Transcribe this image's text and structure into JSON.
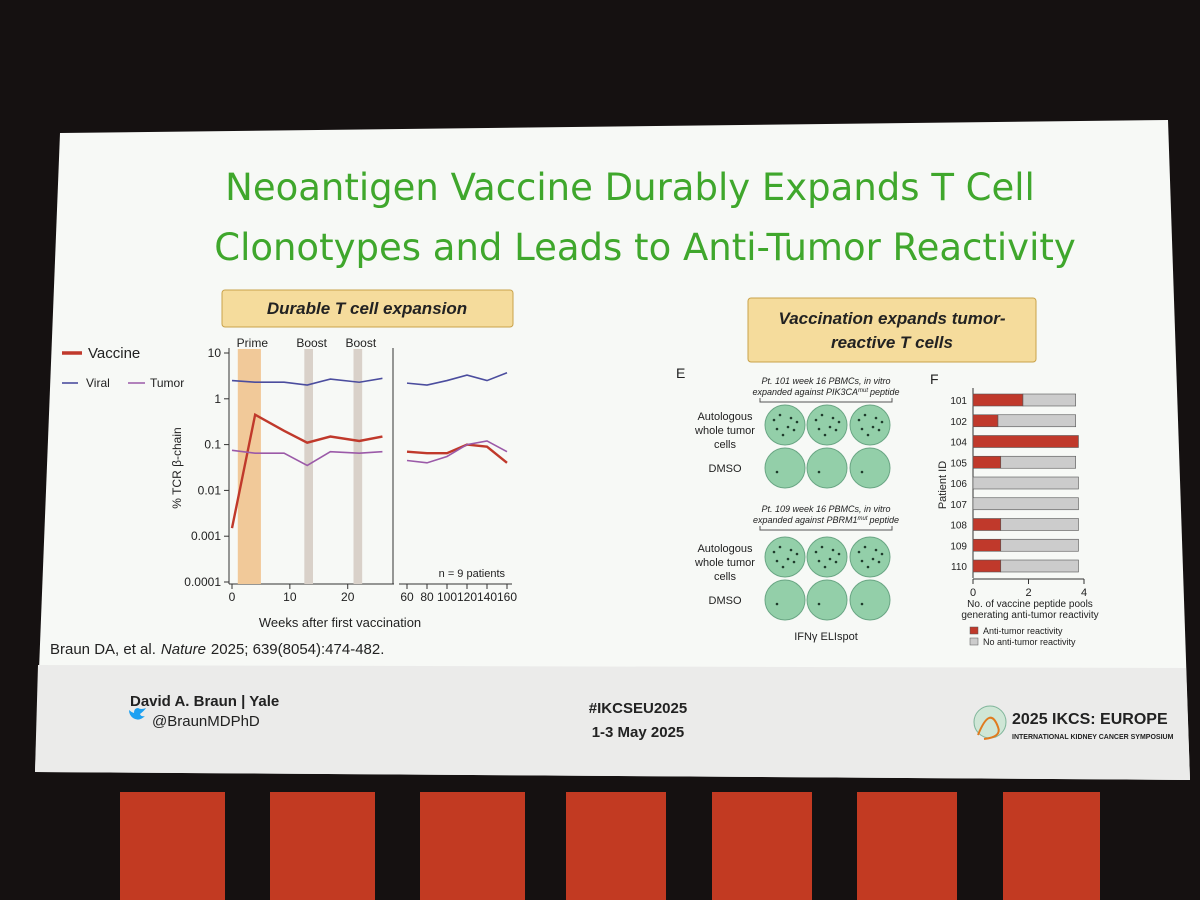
{
  "slide": {
    "title": [
      "Neoantigen Vaccine Durably Expands T Cell",
      "Clonotypes and Leads to Anti-Tumor Reactivity"
    ],
    "citation": {
      "authors": "Braun DA, et al.",
      "journal": "Nature",
      "details": "2025; 639(8054):474-482."
    },
    "footer": {
      "speaker": "David A. Braun | Yale",
      "handle": "@BraunMDPhD",
      "hashtag": "#IKCSEU2025",
      "dates": "1-3 May 2025",
      "logo_title": "2025 IKCS: EUROPE",
      "logo_subtitle": "INTERNATIONAL KIDNEY CANCER SYMPOSIUM"
    },
    "elispot": {
      "header": [
        "Vaccination expands tumor-",
        "reactive T cells"
      ],
      "panel_label": "E",
      "captions": [
        {
          "line1": "Pt. 101 week 16 PBMCs, in vitro",
          "gene": "expanded against PIK3CA",
          "sup": "mut",
          "tail": "peptide"
        },
        {
          "line1": "Pt. 109 week 16 PBMCs, in vitro",
          "gene": "expanded against PBRM1",
          "sup": "mut",
          "tail": "peptide"
        }
      ],
      "row_labels": [
        [
          "Autologous",
          "whole tumor",
          "cells"
        ],
        [
          "DMSO"
        ]
      ],
      "footer": "IFNγ ELIspot"
    }
  },
  "chart_data": [
    {
      "type": "line",
      "header": "Durable T cell expansion",
      "x": [
        0,
        4,
        9,
        13,
        17,
        22,
        26,
        60,
        80,
        100,
        120,
        140,
        160
      ],
      "series": [
        {
          "name": "Vaccine",
          "color": "#c0392b",
          "values": [
            0.0015,
            0.45,
            0.2,
            0.11,
            0.15,
            0.12,
            0.15,
            0.07,
            0.065,
            0.065,
            0.1,
            0.09,
            0.04
          ]
        },
        {
          "name": "Viral",
          "color": "#4b4d9e",
          "values": [
            2.5,
            2.3,
            2.3,
            2.0,
            2.7,
            2.3,
            2.8,
            2.2,
            2.0,
            2.5,
            3.3,
            2.5,
            3.7
          ]
        },
        {
          "name": "Tumor",
          "color": "#9b5aa8",
          "values": [
            0.075,
            0.065,
            0.065,
            0.035,
            0.07,
            0.065,
            0.07,
            0.045,
            0.04,
            0.055,
            0.1,
            0.12,
            0.07
          ]
        }
      ],
      "log_y": true,
      "ylim": [
        0.0001,
        10
      ],
      "yticks": [
        10,
        1,
        0.1,
        0.01,
        0.001,
        0.0001
      ],
      "ylabel": "% TCR β-chain",
      "xlabel": "Weeks after first vaccination",
      "panels": [
        {
          "xlim": [
            0,
            28
          ],
          "xticks": [
            0,
            10,
            20
          ]
        },
        {
          "xlim": [
            52,
            165
          ],
          "xticks": [
            60,
            80,
            100,
            120,
            140,
            160
          ]
        }
      ],
      "bands": [
        {
          "label": "Prime",
          "x": [
            1,
            5
          ],
          "color": "#f1c999",
          "label_color": "#e07b20"
        },
        {
          "label": "Boost",
          "x": [
            12.5,
            14
          ],
          "color": "#d9d1c9",
          "label_color": "#333333"
        },
        {
          "label": "Boost",
          "x": [
            21,
            22.5
          ],
          "color": "#d9d1c9",
          "label_color": "#333333"
        }
      ],
      "annotation": "n = 9 patients"
    },
    {
      "type": "bar",
      "orientation": "horizontal",
      "stacked": true,
      "panel_label": "F",
      "categories": [
        "101",
        "102",
        "104",
        "105",
        "106",
        "107",
        "108",
        "109",
        "110"
      ],
      "series": [
        {
          "name": "Anti-tumor reactivity",
          "color": "#c0392b",
          "values": [
            1.8,
            0.9,
            3.8,
            1.0,
            0,
            0,
            1.0,
            1.0,
            1.0
          ]
        },
        {
          "name": "No anti-tumor reactivity",
          "color": "#cccccc",
          "values": [
            1.9,
            2.8,
            0,
            2.7,
            3.8,
            3.8,
            2.8,
            2.8,
            2.8
          ]
        }
      ],
      "xlim": [
        0,
        4
      ],
      "xticks": [
        0,
        2,
        4
      ],
      "xlabel": [
        "No. of vaccine peptide pools",
        "generating anti-tumor reactivity"
      ],
      "ylabel": "Patient ID"
    }
  ]
}
